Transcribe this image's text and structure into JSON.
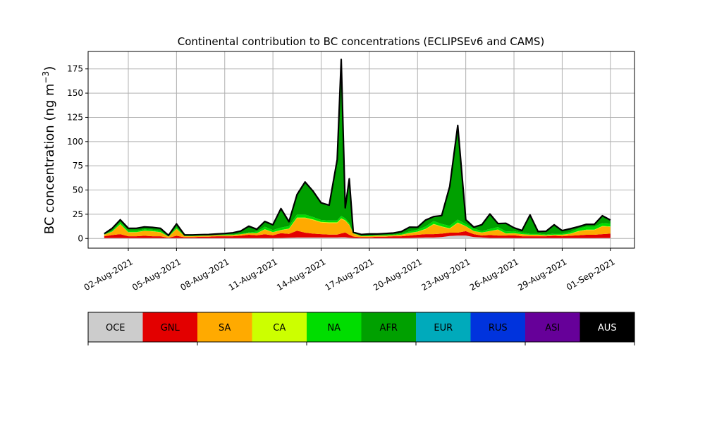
{
  "chart_data": {
    "type": "area",
    "stacked": true,
    "title": "Continental contribution to BC concentrations (ECLIPSEv6 and CAMS)",
    "xlabel": "",
    "ylabel_main": "BC concentration (ng m",
    "ylabel_sup": "−3",
    "ylabel_close": ")",
    "xlim": [
      "2021-07-30T12:00",
      "2021-09-02T12:00"
    ],
    "ylim": [
      -10,
      193
    ],
    "grid": true,
    "legend": "colorbar-below",
    "x_ticks": [
      {
        "date": "2021-08-02",
        "label": "02-Aug-2021"
      },
      {
        "date": "2021-08-05",
        "label": "05-Aug-2021"
      },
      {
        "date": "2021-08-08",
        "label": "08-Aug-2021"
      },
      {
        "date": "2021-08-11",
        "label": "11-Aug-2021"
      },
      {
        "date": "2021-08-14",
        "label": "14-Aug-2021"
      },
      {
        "date": "2021-08-17",
        "label": "17-Aug-2021"
      },
      {
        "date": "2021-08-20",
        "label": "20-Aug-2021"
      },
      {
        "date": "2021-08-23",
        "label": "23-Aug-2021"
      },
      {
        "date": "2021-08-26",
        "label": "26-Aug-2021"
      },
      {
        "date": "2021-08-29",
        "label": "29-Aug-2021"
      },
      {
        "date": "2021-09-01",
        "label": "01-Sep-2021"
      }
    ],
    "y_ticks": [
      {
        "value": 0,
        "label": "0"
      },
      {
        "value": 25,
        "label": "25"
      },
      {
        "value": 50,
        "label": "50"
      },
      {
        "value": 75,
        "label": "75"
      },
      {
        "value": 100,
        "label": "100"
      },
      {
        "value": 125,
        "label": "125"
      },
      {
        "value": 150,
        "label": "150"
      },
      {
        "value": 175,
        "label": "175"
      }
    ],
    "x": [
      "2021-07-31T12:00",
      "2021-08-01T00:00",
      "2021-08-01T12:00",
      "2021-08-02T00:00",
      "2021-08-02T12:00",
      "2021-08-03T00:00",
      "2021-08-03T12:00",
      "2021-08-04T00:00",
      "2021-08-04T12:00",
      "2021-08-05T00:00",
      "2021-08-05T12:00",
      "2021-08-06T00:00",
      "2021-08-06T12:00",
      "2021-08-07T00:00",
      "2021-08-07T12:00",
      "2021-08-08T00:00",
      "2021-08-08T12:00",
      "2021-08-09T00:00",
      "2021-08-09T12:00",
      "2021-08-10T00:00",
      "2021-08-10T12:00",
      "2021-08-11T00:00",
      "2021-08-11T12:00",
      "2021-08-12T00:00",
      "2021-08-12T12:00",
      "2021-08-13T00:00",
      "2021-08-13T12:00",
      "2021-08-14T00:00",
      "2021-08-14T12:00",
      "2021-08-15T00:00",
      "2021-08-15T06:00",
      "2021-08-15T12:00",
      "2021-08-15T18:00",
      "2021-08-16T00:00",
      "2021-08-16T12:00",
      "2021-08-17T00:00",
      "2021-08-17T12:00",
      "2021-08-18T00:00",
      "2021-08-18T12:00",
      "2021-08-19T00:00",
      "2021-08-19T12:00",
      "2021-08-20T00:00",
      "2021-08-20T12:00",
      "2021-08-21T00:00",
      "2021-08-21T12:00",
      "2021-08-22T00:00",
      "2021-08-22T12:00",
      "2021-08-23T00:00",
      "2021-08-23T12:00",
      "2021-08-24T00:00",
      "2021-08-24T12:00",
      "2021-08-25T00:00",
      "2021-08-25T12:00",
      "2021-08-26T00:00",
      "2021-08-26T12:00",
      "2021-08-27T00:00",
      "2021-08-27T12:00",
      "2021-08-28T00:00",
      "2021-08-28T12:00",
      "2021-08-29T00:00",
      "2021-08-29T12:00",
      "2021-08-30T00:00",
      "2021-08-30T12:00",
      "2021-08-31T00:00",
      "2021-08-31T12:00",
      "2021-09-01T00:00"
    ],
    "series": [
      {
        "name": "OCE",
        "color": "#cccccc",
        "values": [
          0.3,
          0.5,
          0.5,
          0.3,
          0.3,
          0.3,
          0.3,
          0.3,
          0.3,
          0.3,
          0.3,
          0.3,
          0.3,
          0.3,
          0.3,
          0.3,
          0.3,
          0.3,
          0.3,
          0.3,
          0.3,
          0.3,
          0.5,
          0.8,
          1.0,
          1.0,
          1.0,
          1.0,
          1.0,
          1.0,
          1.2,
          1.2,
          0.8,
          0.5,
          0.3,
          0.3,
          0.3,
          0.3,
          0.3,
          0.3,
          0.5,
          0.8,
          1.0,
          1.0,
          1.5,
          2.5,
          3.0,
          3.0,
          1.5,
          1.0,
          0.5,
          0.5,
          0.5,
          0.3,
          0.3,
          0.3,
          0.3,
          0.3,
          0.3,
          0.3,
          0.3,
          0.3,
          0.3,
          0.3,
          0.5,
          0.5
        ]
      },
      {
        "name": "GNL",
        "color": "#e30000",
        "values": [
          2.0,
          3.0,
          4.0,
          2.0,
          2.0,
          2.5,
          2.0,
          2.0,
          0.5,
          2.5,
          1.0,
          1.0,
          1.5,
          1.5,
          2.0,
          2.0,
          2.0,
          2.5,
          3.5,
          3.0,
          4.0,
          3.0,
          5.0,
          4.0,
          7.0,
          5.0,
          4.0,
          3.5,
          3.0,
          3.0,
          4.0,
          5.0,
          3.0,
          1.5,
          1.0,
          1.0,
          1.5,
          1.5,
          2.0,
          2.0,
          2.5,
          3.0,
          3.5,
          3.5,
          3.5,
          3.5,
          3.0,
          4.5,
          3.0,
          2.0,
          3.0,
          2.5,
          2.5,
          3.0,
          2.0,
          2.0,
          2.0,
          2.0,
          2.5,
          2.0,
          2.5,
          3.0,
          3.5,
          3.5,
          4.0,
          4.5
        ]
      },
      {
        "name": "SA",
        "color": "#ffaa00",
        "values": [
          1.5,
          3.5,
          10.0,
          4.0,
          4.0,
          5.0,
          5.0,
          4.0,
          1.0,
          7.0,
          1.0,
          1.0,
          0.8,
          1.0,
          1.0,
          1.0,
          1.2,
          1.5,
          1.5,
          2.0,
          5.0,
          3.0,
          3.0,
          5.0,
          13.0,
          15.0,
          14.0,
          12.0,
          12.0,
          12.0,
          15.0,
          12.0,
          10.0,
          3.0,
          1.0,
          1.0,
          1.0,
          1.0,
          1.0,
          1.5,
          2.5,
          3.0,
          5.0,
          10.0,
          7.0,
          4.0,
          10.0,
          5.0,
          3.0,
          3.0,
          4.0,
          6.0,
          2.0,
          2.0,
          2.0,
          1.5,
          1.5,
          1.0,
          1.0,
          1.5,
          2.0,
          4.0,
          5.0,
          5.0,
          8.0,
          7.0
        ]
      },
      {
        "name": "CA",
        "color": "#ccff00",
        "values": [
          0.1,
          0.2,
          0.3,
          0.2,
          0.2,
          0.2,
          0.2,
          0.2,
          0.1,
          0.3,
          0.1,
          0.1,
          0.1,
          0.1,
          0.1,
          0.1,
          0.1,
          0.1,
          0.1,
          0.2,
          0.3,
          0.3,
          0.3,
          0.4,
          0.6,
          0.6,
          0.6,
          0.6,
          0.6,
          0.6,
          0.6,
          0.6,
          0.5,
          0.2,
          0.1,
          0.1,
          0.1,
          0.1,
          0.1,
          0.1,
          0.2,
          0.3,
          0.4,
          0.5,
          0.5,
          0.5,
          0.5,
          0.3,
          0.2,
          0.2,
          0.2,
          0.3,
          0.2,
          0.2,
          0.2,
          0.1,
          0.1,
          0.1,
          0.1,
          0.1,
          0.2,
          0.3,
          0.3,
          0.3,
          0.4,
          0.4
        ]
      },
      {
        "name": "NA",
        "color": "#00dd00",
        "values": [
          0.3,
          0.8,
          2.0,
          1.5,
          1.5,
          1.5,
          1.5,
          1.5,
          0.5,
          1.5,
          0.5,
          0.5,
          0.5,
          0.5,
          0.5,
          0.5,
          0.5,
          0.5,
          0.8,
          1.5,
          2.5,
          2.0,
          2.5,
          2.5,
          3.0,
          3.0,
          2.5,
          2.0,
          2.0,
          2.0,
          2.5,
          2.0,
          1.5,
          0.5,
          0.5,
          0.5,
          0.5,
          0.5,
          0.5,
          1.0,
          1.5,
          2.0,
          2.5,
          3.0,
          2.5,
          2.5,
          3.0,
          2.0,
          2.5,
          1.5,
          2.0,
          2.5,
          2.0,
          2.0,
          1.5,
          1.0,
          1.0,
          0.8,
          1.0,
          1.0,
          1.5,
          2.5,
          3.0,
          3.0,
          3.0,
          3.0
        ]
      },
      {
        "name": "AFR",
        "color": "#00a000",
        "values": [
          0.5,
          2.0,
          2.0,
          2.0,
          2.0,
          2.0,
          2.0,
          2.0,
          0.5,
          3.0,
          0.5,
          0.5,
          0.5,
          0.5,
          0.5,
          1.0,
          1.5,
          2.5,
          6.0,
          2.0,
          5.0,
          5.0,
          19.0,
          4.0,
          20.0,
          33.0,
          26.0,
          17.0,
          15.0,
          62.0,
          160.0,
          10.0,
          45.0,
          0.5,
          1.0,
          1.5,
          1.0,
          1.5,
          1.5,
          2.0,
          4.0,
          2.0,
          6.0,
          4.0,
          8.0,
          40.0,
          96.0,
          4.0,
          1.0,
          6.0,
          15.0,
          3.0,
          8.0,
          3.0,
          2.0,
          19.0,
          2.0,
          3.0,
          9.0,
          3.0,
          3.0,
          1.5,
          2.0,
          2.0,
          7.0,
          3.0
        ]
      },
      {
        "name": "EUR",
        "color": "#00aabb",
        "values": [
          0.05,
          0.1,
          0.1,
          0.1,
          0.1,
          0.1,
          0.1,
          0.1,
          0.05,
          0.1,
          0.05,
          0.05,
          0.05,
          0.05,
          0.05,
          0.05,
          0.05,
          0.05,
          0.1,
          0.1,
          0.1,
          0.1,
          0.1,
          0.1,
          0.1,
          0.1,
          0.1,
          0.1,
          0.1,
          0.1,
          0.2,
          0.1,
          0.1,
          0.05,
          0.05,
          0.05,
          0.05,
          0.05,
          0.05,
          0.05,
          0.1,
          0.1,
          0.1,
          0.1,
          0.1,
          0.1,
          0.2,
          0.1,
          0.1,
          0.1,
          0.1,
          0.1,
          0.1,
          0.1,
          0.05,
          0.05,
          0.05,
          0.05,
          0.05,
          0.05,
          0.1,
          0.1,
          0.1,
          0.1,
          0.1,
          0.1
        ]
      },
      {
        "name": "RUS",
        "color": "#0033dd",
        "values": [
          0.05,
          0.1,
          0.1,
          0.1,
          0.1,
          0.1,
          0.1,
          0.1,
          0.05,
          0.1,
          0.05,
          0.05,
          0.05,
          0.05,
          0.05,
          0.05,
          0.05,
          0.05,
          0.1,
          0.1,
          0.1,
          0.1,
          0.1,
          0.1,
          0.1,
          0.1,
          0.1,
          0.1,
          0.1,
          0.1,
          0.2,
          0.1,
          0.1,
          0.05,
          0.05,
          0.05,
          0.05,
          0.05,
          0.05,
          0.05,
          0.1,
          0.1,
          0.1,
          0.1,
          0.1,
          0.1,
          0.2,
          0.1,
          0.1,
          0.1,
          0.1,
          0.1,
          0.1,
          0.1,
          0.05,
          0.05,
          0.05,
          0.05,
          0.05,
          0.05,
          0.1,
          0.1,
          0.1,
          0.1,
          0.1,
          0.1
        ]
      },
      {
        "name": "ASI",
        "color": "#660099",
        "values": [
          0.1,
          0.2,
          0.2,
          0.2,
          0.2,
          0.2,
          0.2,
          0.2,
          0.1,
          0.2,
          0.1,
          0.1,
          0.1,
          0.1,
          0.1,
          0.1,
          0.1,
          0.1,
          0.2,
          0.2,
          0.2,
          0.2,
          0.3,
          0.3,
          0.4,
          0.4,
          0.4,
          0.4,
          0.4,
          0.5,
          0.8,
          0.5,
          0.5,
          0.1,
          0.1,
          0.1,
          0.1,
          0.1,
          0.1,
          0.1,
          0.2,
          0.2,
          0.3,
          0.3,
          0.3,
          0.4,
          0.6,
          0.3,
          0.2,
          0.2,
          0.3,
          0.3,
          0.2,
          0.2,
          0.1,
          0.2,
          0.1,
          0.1,
          0.1,
          0.1,
          0.2,
          0.2,
          0.2,
          0.2,
          0.3,
          0.3
        ]
      },
      {
        "name": "AUS",
        "color": "#000000",
        "values": [
          0.05,
          0.1,
          0.1,
          0.1,
          0.1,
          0.1,
          0.1,
          0.1,
          0.05,
          0.1,
          0.05,
          0.05,
          0.05,
          0.05,
          0.05,
          0.05,
          0.05,
          0.05,
          0.1,
          0.1,
          0.1,
          0.1,
          0.1,
          0.1,
          0.1,
          0.1,
          0.1,
          0.1,
          0.1,
          0.1,
          0.3,
          0.1,
          0.1,
          0.05,
          0.05,
          0.05,
          0.05,
          0.05,
          0.05,
          0.05,
          0.1,
          0.1,
          0.1,
          0.1,
          0.1,
          0.1,
          0.2,
          0.1,
          0.1,
          0.1,
          0.1,
          0.1,
          0.1,
          0.1,
          0.05,
          0.05,
          0.05,
          0.05,
          0.05,
          0.05,
          0.1,
          0.1,
          0.1,
          0.1,
          0.1,
          0.1
        ]
      }
    ]
  }
}
